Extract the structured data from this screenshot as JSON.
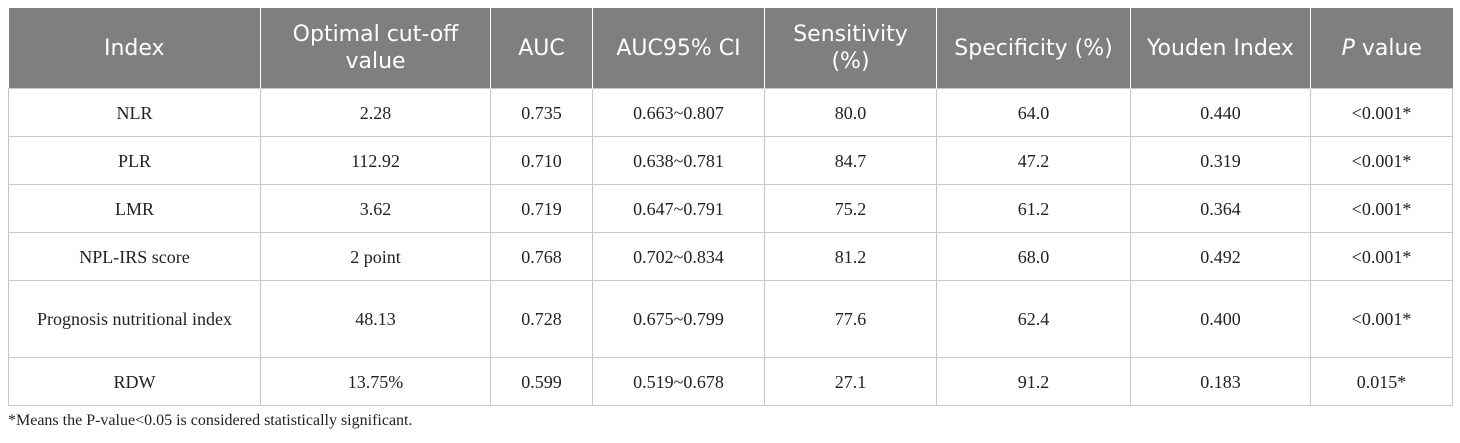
{
  "table": {
    "headers": [
      "Index",
      "Optimal cut-off value",
      "AUC",
      "AUC95% CI",
      "Sensitivity (%)",
      "Specificity (%)",
      "Youden Index",
      "P value"
    ],
    "header_p_italic": "P",
    "header_p_rest": " value",
    "rows": [
      [
        "NLR",
        "2.28",
        "0.735",
        "0.663~0.807",
        "80.0",
        "64.0",
        "0.440",
        "<0.001*"
      ],
      [
        "PLR",
        "112.92",
        "0.710",
        "0.638~0.781",
        "84.7",
        "47.2",
        "0.319",
        "<0.001*"
      ],
      [
        "LMR",
        "3.62",
        "0.719",
        "0.647~0.791",
        "75.2",
        "61.2",
        "0.364",
        "<0.001*"
      ],
      [
        "NPL-IRS score",
        "2 point",
        "0.768",
        "0.702~0.834",
        "81.2",
        "68.0",
        "0.492",
        "<0.001*"
      ],
      [
        "Prognosis nutritional index",
        "48.13",
        "0.728",
        "0.675~0.799",
        "77.6",
        "62.4",
        "0.400",
        "<0.001*"
      ],
      [
        "RDW",
        "13.75%",
        "0.599",
        "0.519~0.678",
        "27.1",
        "91.2",
        "0.183",
        "0.015*"
      ]
    ]
  },
  "footnote": "*Means the P-value<0.05 is considered statistically significant.",
  "colors": {
    "header_bg": "#7f7f7f",
    "header_text": "#ffffff",
    "border": "#c8c8c8"
  }
}
